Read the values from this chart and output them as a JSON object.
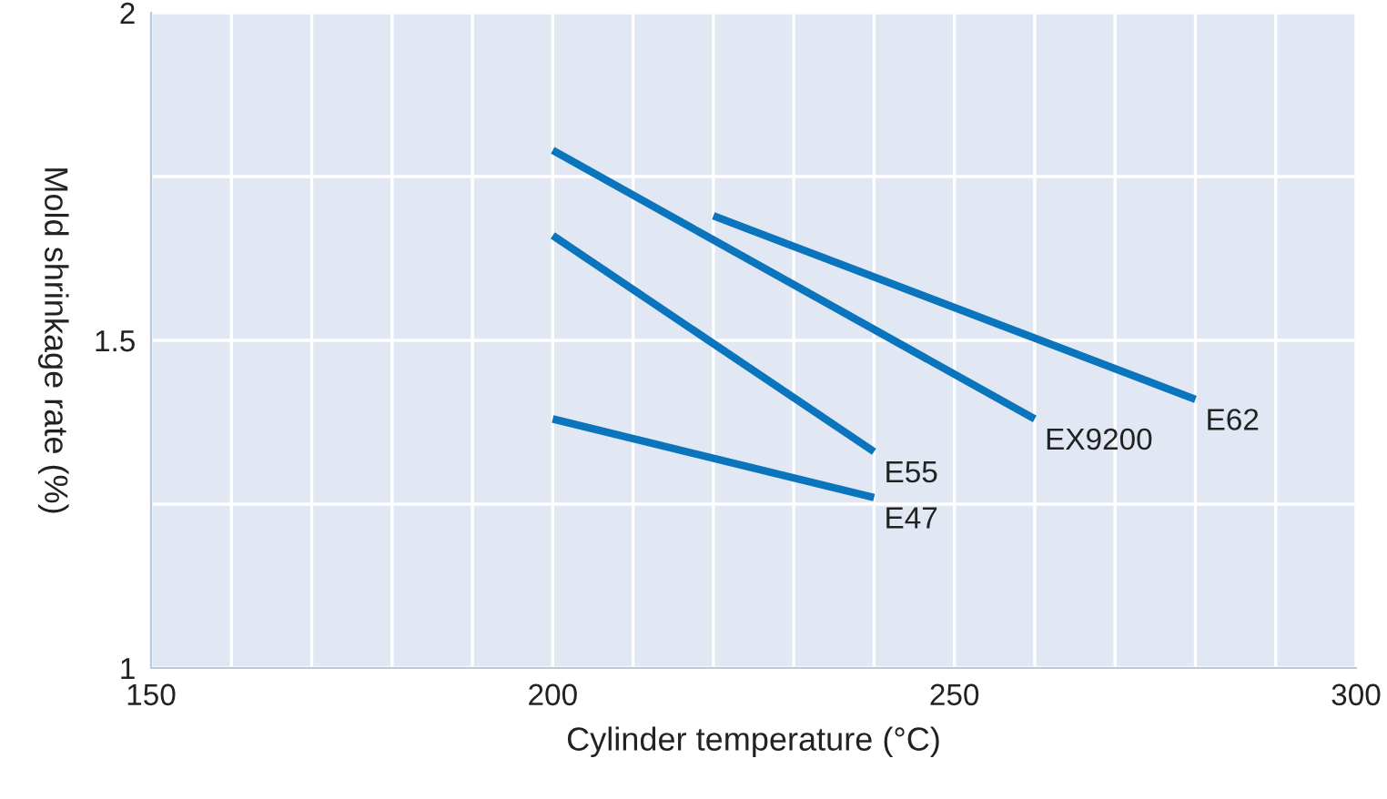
{
  "chart_data": {
    "type": "line",
    "xlabel": "Cylinder temperature (°C)",
    "ylabel": "Mold shrinkage rate (%)",
    "xlim": [
      150,
      300
    ],
    "ylim": [
      1,
      2
    ],
    "xticks": [
      150,
      {
        "value": 160,
        "label": null
      },
      {
        "value": 170,
        "label": null
      },
      {
        "value": 180,
        "label": null
      },
      {
        "value": 190,
        "label": null
      },
      200,
      {
        "value": 210,
        "label": null
      },
      {
        "value": 220,
        "label": null
      },
      {
        "value": 230,
        "label": null
      },
      {
        "value": 240,
        "label": null
      },
      250,
      {
        "value": 260,
        "label": null
      },
      {
        "value": 270,
        "label": null
      },
      {
        "value": 280,
        "label": null
      },
      {
        "value": 290,
        "label": null
      },
      300
    ],
    "yticks": [
      1,
      {
        "value": 1.25,
        "label": null
      },
      1.5,
      {
        "value": 1.75,
        "label": null
      },
      2
    ],
    "grid": true,
    "marker": "none",
    "line_style": "solid",
    "legend": false,
    "series": [
      {
        "name": "EX9200",
        "color": "#0a75bc",
        "x": [
          200,
          260
        ],
        "values": [
          1.79,
          1.38
        ]
      },
      {
        "name": "E55",
        "color": "#0a75bc",
        "x": [
          200,
          240
        ],
        "values": [
          1.66,
          1.33
        ]
      },
      {
        "name": "E62",
        "color": "#0a75bc",
        "x": [
          220,
          280
        ],
        "values": [
          1.69,
          1.41
        ]
      },
      {
        "name": "E47",
        "color": "#0a75bc",
        "x": [
          200,
          240
        ],
        "values": [
          1.38,
          1.26
        ]
      }
    ]
  }
}
